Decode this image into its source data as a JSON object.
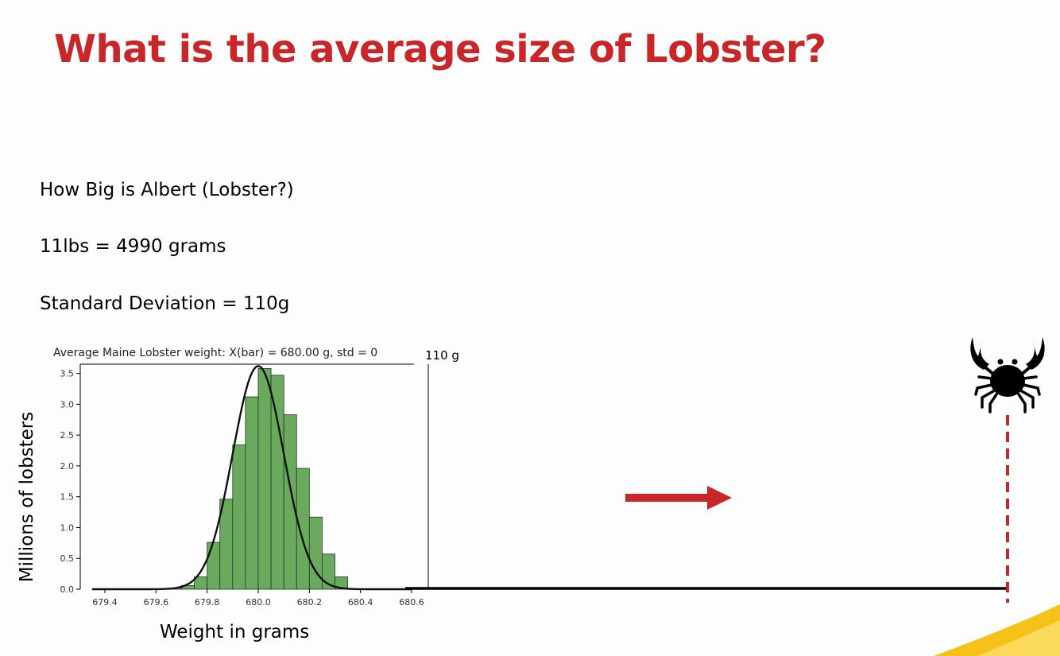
{
  "slide": {
    "title": "What is the average size of Lobster?",
    "line1": "How Big is Albert (Lobster?)",
    "line2": "11lbs =  4990 grams",
    "line3": "Standard Deviation = 110g"
  },
  "annotations": {
    "std_label": "110 g",
    "arrow_color": "#c9262a",
    "crab_icon": "crab-icon"
  },
  "chart_data": {
    "type": "bar",
    "title": "Average Maine Lobster weight: X(bar) = 680.00 g,  std = 0",
    "xlabel": "Weight in grams",
    "ylabel": "Millions of lobsters",
    "xlim": [
      679.35,
      680.6
    ],
    "ylim": [
      0,
      3.65
    ],
    "xticks": [
      "679.4",
      "679.6",
      "679.8",
      "680.0",
      "680.2",
      "680.4",
      "680.6"
    ],
    "yticks": [
      "0.0",
      "0.5",
      "1.0",
      "1.5",
      "2.0",
      "2.5",
      "3.0",
      "3.5"
    ],
    "bin_width": 0.05,
    "bin_lefts": [
      679.65,
      679.7,
      679.75,
      679.8,
      679.85,
      679.9,
      679.95,
      680.0,
      680.05,
      680.1,
      680.15,
      680.2,
      680.25,
      680.3
    ],
    "values": [
      0.02,
      0.06,
      0.2,
      0.76,
      1.46,
      2.34,
      3.12,
      3.58,
      3.47,
      2.83,
      1.96,
      1.17,
      0.57,
      0.2
    ],
    "bar_color": "#6aaa5f",
    "curve": {
      "mean": 680.0,
      "std": 0.1,
      "peak": 3.62
    }
  }
}
